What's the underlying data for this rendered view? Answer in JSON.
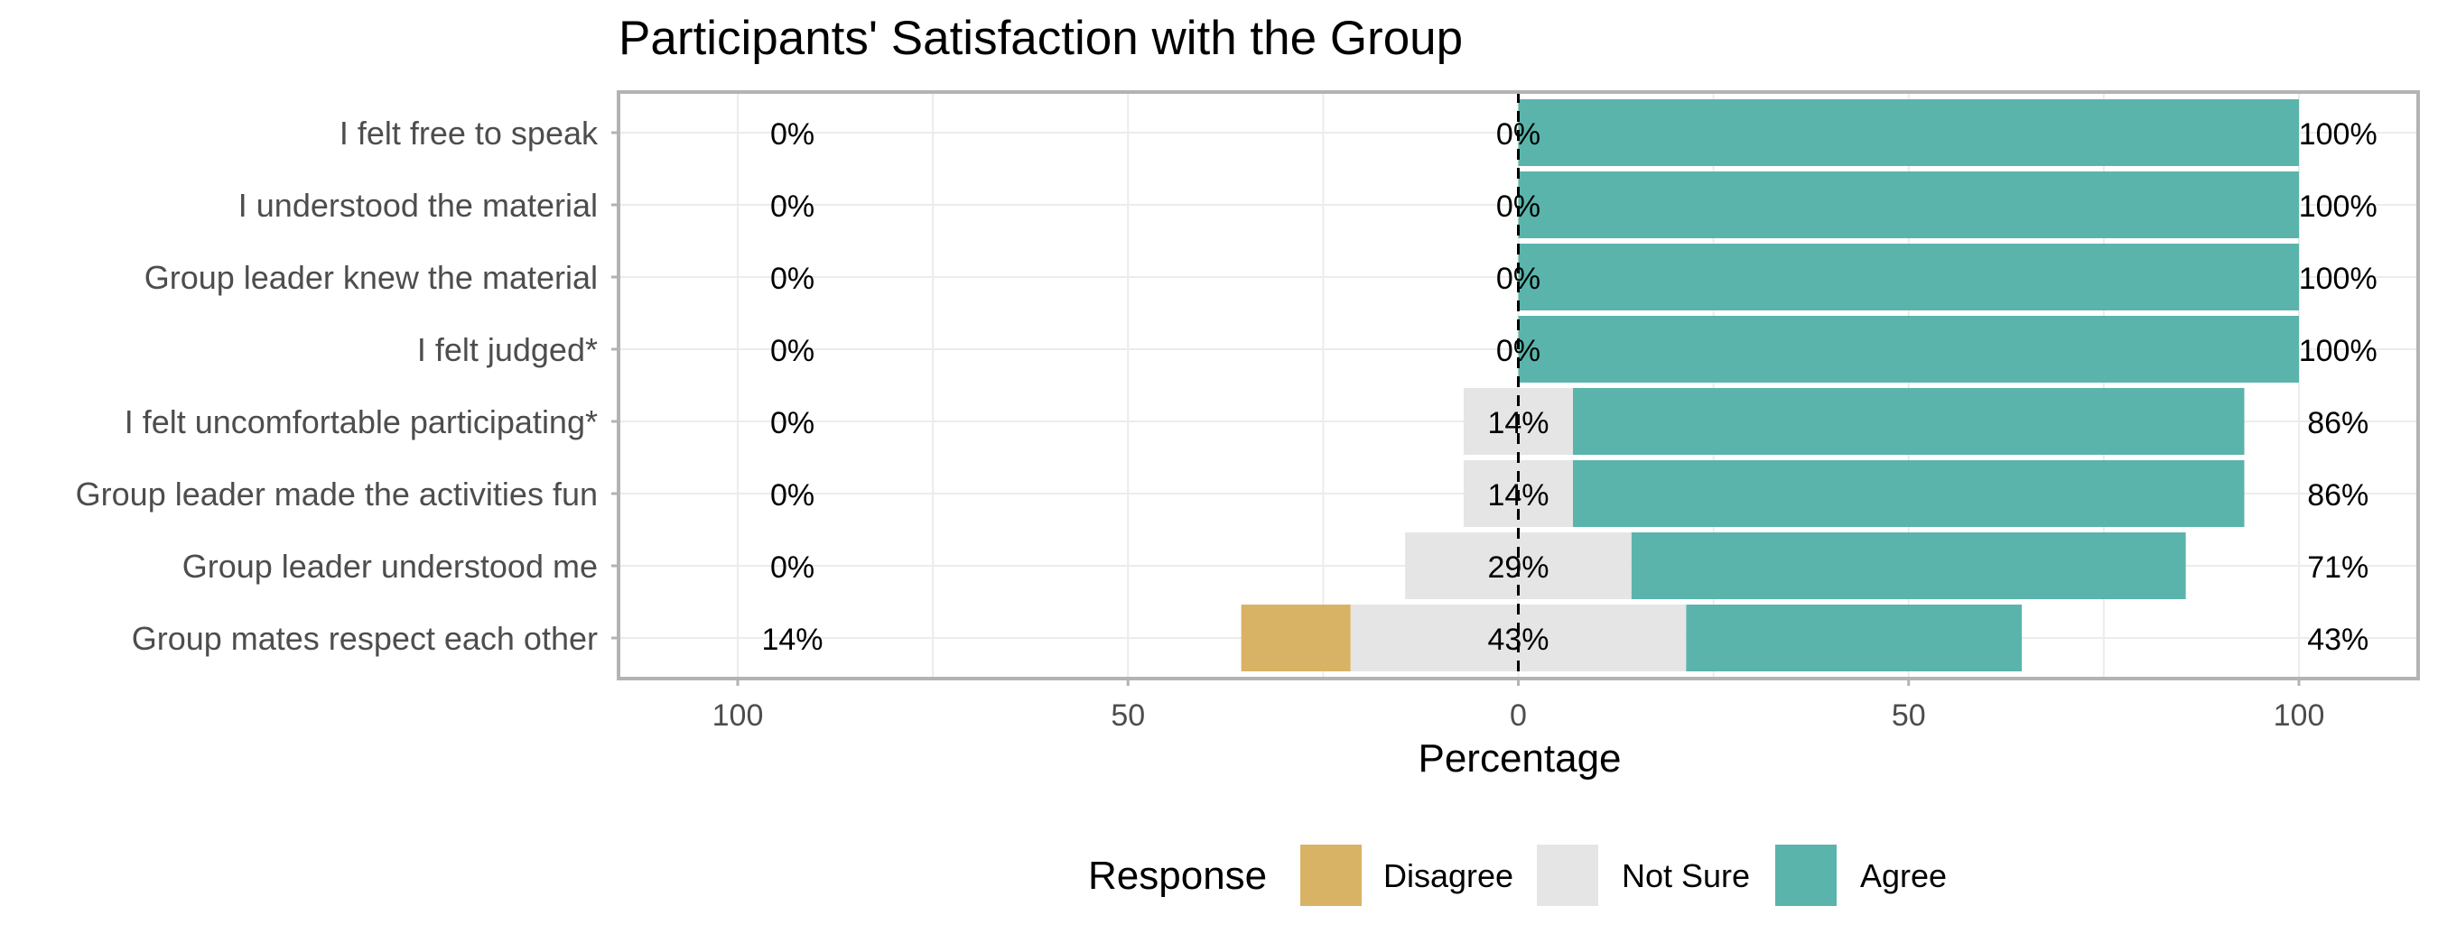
{
  "chart_data": {
    "type": "bar",
    "orientation": "horizontal",
    "stacked": "diverging",
    "title": "Participants' Satisfaction with the Group",
    "xlabel": "Percentage",
    "ylabel": "",
    "xlim": [
      -100,
      100
    ],
    "xticks": [
      -100,
      -50,
      0,
      50,
      100
    ],
    "xtick_labels": [
      "100",
      "50",
      "0",
      "50",
      "100"
    ],
    "grid": true,
    "categories": [
      "I felt free to speak",
      "I understood the material",
      "Group leader knew the material",
      "I felt judged*",
      "I felt uncomfortable participating*",
      "Group leader made the activities fun",
      "Group leader understood me",
      "Group mates respect each other"
    ],
    "series": [
      {
        "name": "Disagree",
        "color": "#D9B365",
        "values": [
          0,
          0,
          0,
          0,
          0,
          0,
          0,
          14
        ]
      },
      {
        "name": "Not Sure",
        "color": "#E5E5E5",
        "values": [
          0,
          0,
          0,
          0,
          14,
          14,
          29,
          43
        ]
      },
      {
        "name": "Agree",
        "color": "#5AB4AC",
        "values": [
          100,
          100,
          100,
          100,
          86,
          86,
          71,
          43
        ]
      }
    ],
    "labels": {
      "disagree": [
        "0%",
        "0%",
        "0%",
        "0%",
        "0%",
        "0%",
        "0%",
        "14%"
      ],
      "neutral": [
        "0%",
        "0%",
        "0%",
        "0%",
        "14%",
        "14%",
        "29%",
        "43%"
      ],
      "agree": [
        "100%",
        "100%",
        "100%",
        "100%",
        "86%",
        "86%",
        "71%",
        "43%"
      ]
    },
    "legend": {
      "title": "Response",
      "position": "bottom",
      "entries": [
        "Disagree",
        "Not Sure",
        "Agree"
      ]
    }
  }
}
